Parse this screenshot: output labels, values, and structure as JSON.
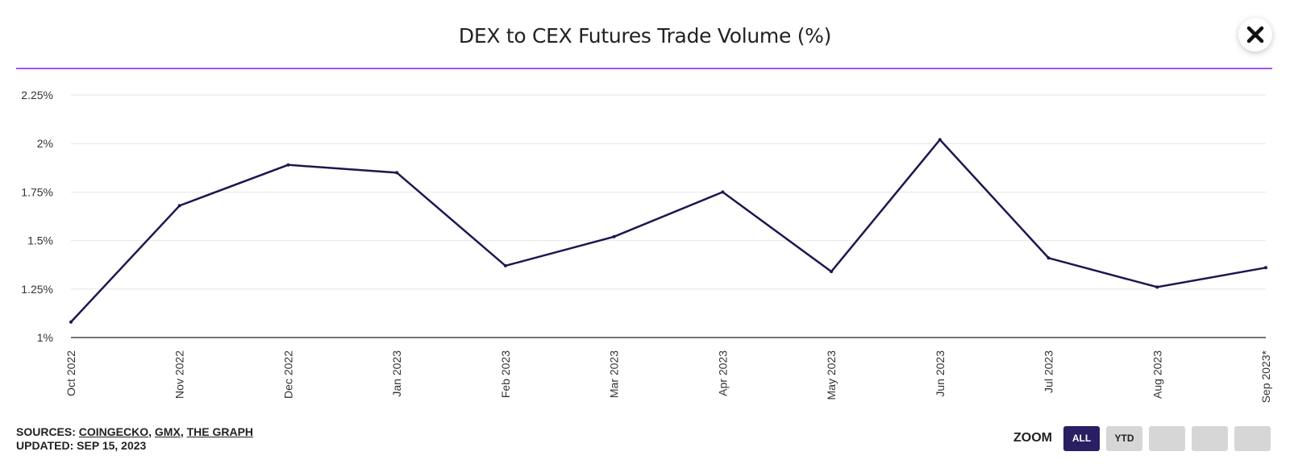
{
  "header": {
    "title": "DEX to CEX Futures Trade Volume (%)"
  },
  "close_button": {
    "icon": "close-icon"
  },
  "chart_data": {
    "type": "line",
    "title": "DEX to CEX Futures Trade Volume (%)",
    "categories": [
      "Oct 2022",
      "Nov 2022",
      "Dec 2022",
      "Jan 2023",
      "Feb 2023",
      "Mar 2023",
      "Apr 2023",
      "May 2023",
      "Jun 2023",
      "Jul 2023",
      "Aug 2023",
      "Sep 2023*"
    ],
    "series": [
      {
        "values": [
          1.08,
          1.68,
          1.89,
          1.85,
          1.37,
          1.52,
          1.75,
          1.34,
          2.02,
          1.41,
          1.26,
          1.36
        ],
        "color": "#1f1650"
      }
    ],
    "ylim": [
      1,
      2.25
    ],
    "yticks": [
      1,
      1.25,
      1.5,
      1.75,
      2,
      2.25
    ],
    "ytick_labels": [
      "1%",
      "1.25%",
      "1.5%",
      "1.75%",
      "2%",
      "2.25%"
    ],
    "grid": true,
    "xlabel": "",
    "ylabel": ""
  },
  "footer": {
    "sources_prefix": "SOURCES: ",
    "sources": [
      "COINGECKO",
      "GMX",
      "THE GRAPH"
    ],
    "updated": "UPDATED: SEP 15, 2023"
  },
  "zoom": {
    "label": "ZOOM",
    "buttons": [
      "ALL",
      "YTD",
      "",
      "",
      ""
    ],
    "active": "ALL"
  },
  "colors": {
    "accent": "#a855f7",
    "line": "#1f1650",
    "active_button": "#2a1f63"
  }
}
